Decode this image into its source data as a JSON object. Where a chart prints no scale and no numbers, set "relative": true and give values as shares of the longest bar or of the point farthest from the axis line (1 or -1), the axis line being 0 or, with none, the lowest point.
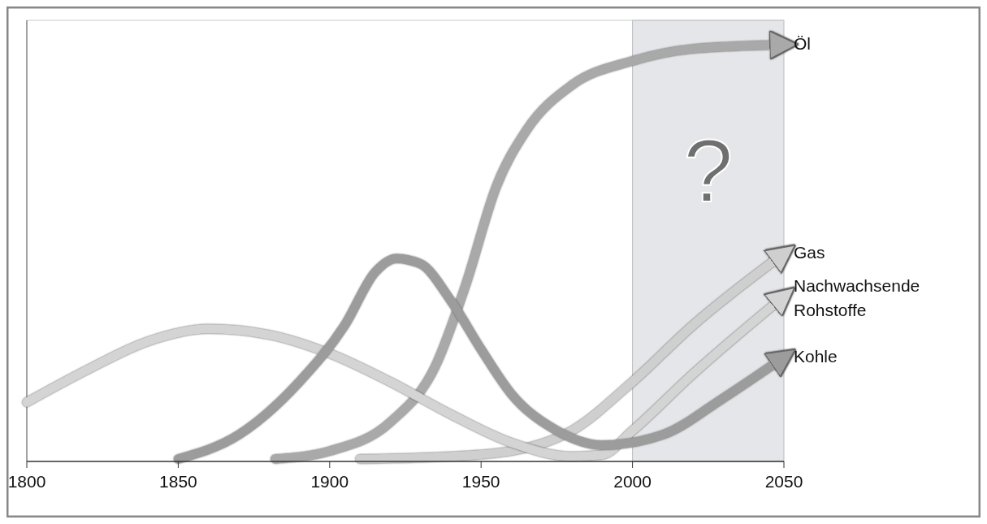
{
  "chart_data": {
    "type": "line",
    "relative": true,
    "xlim": [
      1800,
      2050
    ],
    "xticks": [
      1800,
      1850,
      1900,
      1950,
      2000,
      2050
    ],
    "bands": [
      {
        "axis": "x",
        "from": 2000,
        "to": 2050,
        "color": "#e4e6e9"
      }
    ],
    "annotations": [
      "?"
    ],
    "grid": false,
    "series": [
      {
        "name": "Öl",
        "color": "#a9a9a9",
        "x": [
          1882,
          1900,
          1920,
          1935,
          1945,
          1955,
          1965,
          1980,
          2000,
          2020,
          2050
        ],
        "values": [
          0.006,
          0.025,
          0.094,
          0.23,
          0.425,
          0.659,
          0.795,
          0.903,
          0.961,
          0.99,
          1
        ]
      },
      {
        "name": "Gas",
        "color": "#cfcfcf",
        "x": [
          1910,
          1940,
          1960,
          1980,
          2000,
          2020,
          2050
        ],
        "values": [
          0.006,
          0.012,
          0.025,
          0.074,
          0.191,
          0.327,
          0.499
        ]
      },
      {
        "name": "Nachwachsende Rohstoffe",
        "color": "#d4d4d4",
        "x": [
          1800,
          1820,
          1840,
          1860,
          1880,
          1900,
          1920,
          1940,
          1960,
          1980,
          1990,
          2000,
          2020,
          2050
        ],
        "values": [
          0.142,
          0.22,
          0.288,
          0.318,
          0.304,
          0.259,
          0.191,
          0.113,
          0.045,
          0.012,
          0.016,
          0.074,
          0.21,
          0.396
        ]
      },
      {
        "name": "Kohle",
        "color": "#9c9c9c",
        "x": [
          1850,
          1870,
          1890,
          1905,
          1915,
          1922,
          1930,
          1940,
          1950,
          1960,
          1975,
          1990,
          2010,
          2030,
          2050
        ],
        "values": [
          0.006,
          0.064,
          0.191,
          0.327,
          0.454,
          0.487,
          0.474,
          0.386,
          0.269,
          0.162,
          0.074,
          0.039,
          0.064,
          0.152,
          0.25
        ]
      }
    ]
  }
}
